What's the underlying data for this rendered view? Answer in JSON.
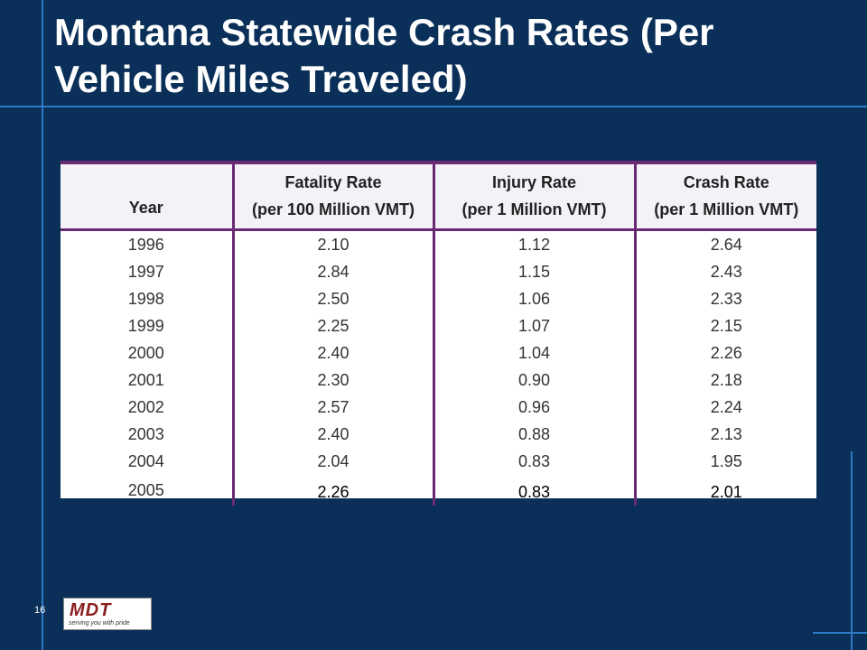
{
  "slide": {
    "title": "Montana Statewide Crash Rates (Per Vehicle Miles Traveled)",
    "page_number": "16",
    "logo_text": "MDT",
    "logo_tagline": "serving you with pride"
  },
  "table": {
    "headers": [
      {
        "line1": "",
        "line2": "Year"
      },
      {
        "line1": "Fatality Rate",
        "line2": "(per 100 Million VMT)"
      },
      {
        "line1": "Injury Rate",
        "line2": "(per 1 Million VMT)"
      },
      {
        "line1": "Crash Rate",
        "line2": "(per 1 Million VMT)"
      }
    ],
    "rows": [
      [
        "1996",
        "2.10",
        "1.12",
        "2.64"
      ],
      [
        "1997",
        "2.84",
        "1.15",
        "2.43"
      ],
      [
        "1998",
        "2.50",
        "1.06",
        "2.33"
      ],
      [
        "1999",
        "2.25",
        "1.07",
        "2.15"
      ],
      [
        "2000",
        "2.40",
        "1.04",
        "2.26"
      ],
      [
        "2001",
        "2.30",
        "0.90",
        "2.18"
      ],
      [
        "2002",
        "2.57",
        "0.96",
        "2.24"
      ],
      [
        "2003",
        "2.40",
        "0.88",
        "2.13"
      ],
      [
        "2004",
        "2.04",
        "0.83",
        "1.95"
      ],
      [
        "2005",
        "2.26",
        "0.83",
        "2.01"
      ]
    ]
  },
  "colors": {
    "background": "#0a2f58",
    "accent_lines": "#2f78c8",
    "table_rule": "#6a2a73"
  }
}
